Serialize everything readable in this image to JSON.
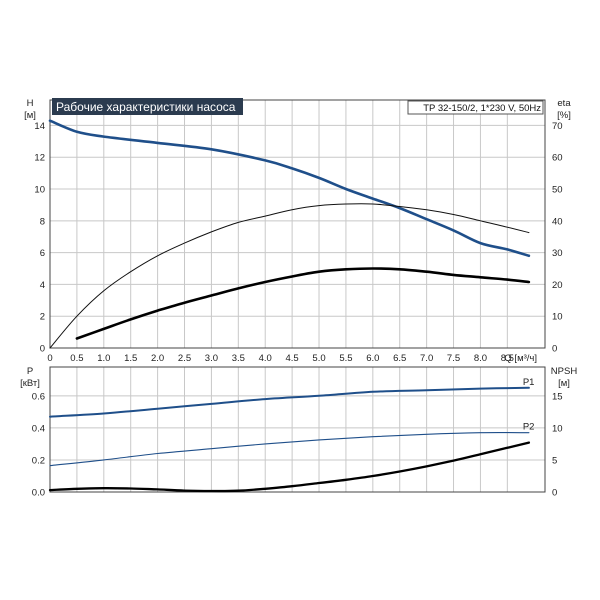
{
  "chart_data": [
    {
      "type": "line",
      "title": "Рабочие характеристики насоса",
      "subtitle": "TP 32-150/2, 1*230 V, 50Hz",
      "xlabel": "Q [м³/ч]",
      "ylabel": "H [м]",
      "y2label": "eta [%]",
      "xlim": [
        0,
        9.2
      ],
      "ylim": [
        0,
        15.6
      ],
      "y2lim": [
        0,
        78
      ],
      "x_ticks": [
        "0",
        "0.5",
        "1.0",
        "1.5",
        "2.0",
        "2.5",
        "3.0",
        "3.5",
        "4.0",
        "4.5",
        "5.0",
        "5.5",
        "6.0",
        "6.5",
        "7.0",
        "7.5",
        "8.0",
        "8.5"
      ],
      "x_tick_values": [
        0,
        0.5,
        1,
        1.5,
        2,
        2.5,
        3,
        3.5,
        4,
        4.5,
        5,
        5.5,
        6,
        6.5,
        7,
        7.5,
        8,
        8.5
      ],
      "y_ticks": [
        0,
        2,
        4,
        6,
        8,
        10,
        12,
        14
      ],
      "y2_ticks": [
        0,
        10,
        20,
        30,
        40,
        50,
        60,
        70
      ],
      "grid": true,
      "series": [
        {
          "color": "#1f4f8a",
          "axis": "left",
          "width": 2.6,
          "points": [
            [
              0,
              14.3
            ],
            [
              0.5,
              13.6
            ],
            [
              1,
              13.3
            ],
            [
              2,
              12.9
            ],
            [
              3,
              12.5
            ],
            [
              4,
              11.8
            ],
            [
              4.5,
              11.3
            ],
            [
              5,
              10.7
            ],
            [
              5.5,
              10.0
            ],
            [
              6,
              9.4
            ],
            [
              6.5,
              8.8
            ],
            [
              7,
              8.1
            ],
            [
              7.5,
              7.4
            ],
            [
              8,
              6.6
            ],
            [
              8.5,
              6.2
            ],
            [
              8.9,
              5.8
            ]
          ]
        },
        {
          "color": "#111111",
          "axis": "right",
          "width": 1.0,
          "points": [
            [
              0,
              0
            ],
            [
              0.5,
              10
            ],
            [
              1,
              18
            ],
            [
              1.5,
              24
            ],
            [
              2,
              29
            ],
            [
              2.5,
              33
            ],
            [
              3,
              36.5
            ],
            [
              3.5,
              39.5
            ],
            [
              4,
              41.5
            ],
            [
              4.5,
              43.5
            ],
            [
              5,
              44.8
            ],
            [
              5.5,
              45.3
            ],
            [
              6,
              45.3
            ],
            [
              6.5,
              44.5
            ],
            [
              7,
              43.5
            ],
            [
              7.5,
              42
            ],
            [
              8,
              40
            ],
            [
              8.5,
              38
            ],
            [
              8.9,
              36.3
            ]
          ]
        },
        {
          "color": "#000000",
          "axis": "left",
          "width": 2.6,
          "points": [
            [
              0.5,
              0.6
            ],
            [
              1,
              1.2
            ],
            [
              1.5,
              1.8
            ],
            [
              2,
              2.35
            ],
            [
              2.5,
              2.85
            ],
            [
              3,
              3.3
            ],
            [
              3.5,
              3.75
            ],
            [
              4,
              4.15
            ],
            [
              4.5,
              4.5
            ],
            [
              5,
              4.8
            ],
            [
              5.5,
              4.95
            ],
            [
              6,
              5.0
            ],
            [
              6.5,
              4.95
            ],
            [
              7,
              4.8
            ],
            [
              7.5,
              4.6
            ],
            [
              8,
              4.45
            ],
            [
              8.5,
              4.3
            ],
            [
              8.9,
              4.15
            ]
          ]
        }
      ]
    },
    {
      "type": "line",
      "ylabel": "P [кВт]",
      "y2label": "NPSH [м]",
      "xlim": [
        0,
        9.2
      ],
      "ylim": [
        0,
        0.78
      ],
      "y2lim": [
        0,
        19.5
      ],
      "y_ticks": [
        "0.0",
        "0.2",
        "0.4",
        "0.6"
      ],
      "y_tick_values": [
        0,
        0.2,
        0.4,
        0.6
      ],
      "y2_ticks": [
        0,
        5,
        10,
        15
      ],
      "grid": true,
      "series": [
        {
          "name": "P1",
          "color": "#1f4f8a",
          "axis": "left",
          "width": 2.0,
          "points": [
            [
              0,
              0.47
            ],
            [
              1,
              0.49
            ],
            [
              2,
              0.52
            ],
            [
              3,
              0.55
            ],
            [
              4,
              0.58
            ],
            [
              5,
              0.6
            ],
            [
              6,
              0.625
            ],
            [
              7,
              0.635
            ],
            [
              8,
              0.645
            ],
            [
              8.9,
              0.65
            ]
          ]
        },
        {
          "name": "P2",
          "color": "#1f4f8a",
          "axis": "left",
          "width": 1.1,
          "points": [
            [
              0,
              0.165
            ],
            [
              1,
              0.2
            ],
            [
              2,
              0.24
            ],
            [
              3,
              0.27
            ],
            [
              4,
              0.3
            ],
            [
              5,
              0.325
            ],
            [
              6,
              0.345
            ],
            [
              7,
              0.36
            ],
            [
              8,
              0.37
            ],
            [
              8.9,
              0.37
            ]
          ]
        },
        {
          "color": "#000000",
          "axis": "right",
          "width": 2.3,
          "points": [
            [
              0,
              0.3
            ],
            [
              0.5,
              0.5
            ],
            [
              1,
              0.6
            ],
            [
              1.5,
              0.55
            ],
            [
              2,
              0.4
            ],
            [
              2.5,
              0.22
            ],
            [
              3,
              0.15
            ],
            [
              3.5,
              0.2
            ],
            [
              4,
              0.5
            ],
            [
              4.5,
              0.9
            ],
            [
              5,
              1.4
            ],
            [
              5.5,
              1.9
            ],
            [
              6,
              2.5
            ],
            [
              6.5,
              3.2
            ],
            [
              7,
              4.0
            ],
            [
              7.5,
              4.9
            ],
            [
              8,
              5.9
            ],
            [
              8.5,
              6.9
            ],
            [
              8.9,
              7.7
            ]
          ]
        }
      ]
    }
  ]
}
